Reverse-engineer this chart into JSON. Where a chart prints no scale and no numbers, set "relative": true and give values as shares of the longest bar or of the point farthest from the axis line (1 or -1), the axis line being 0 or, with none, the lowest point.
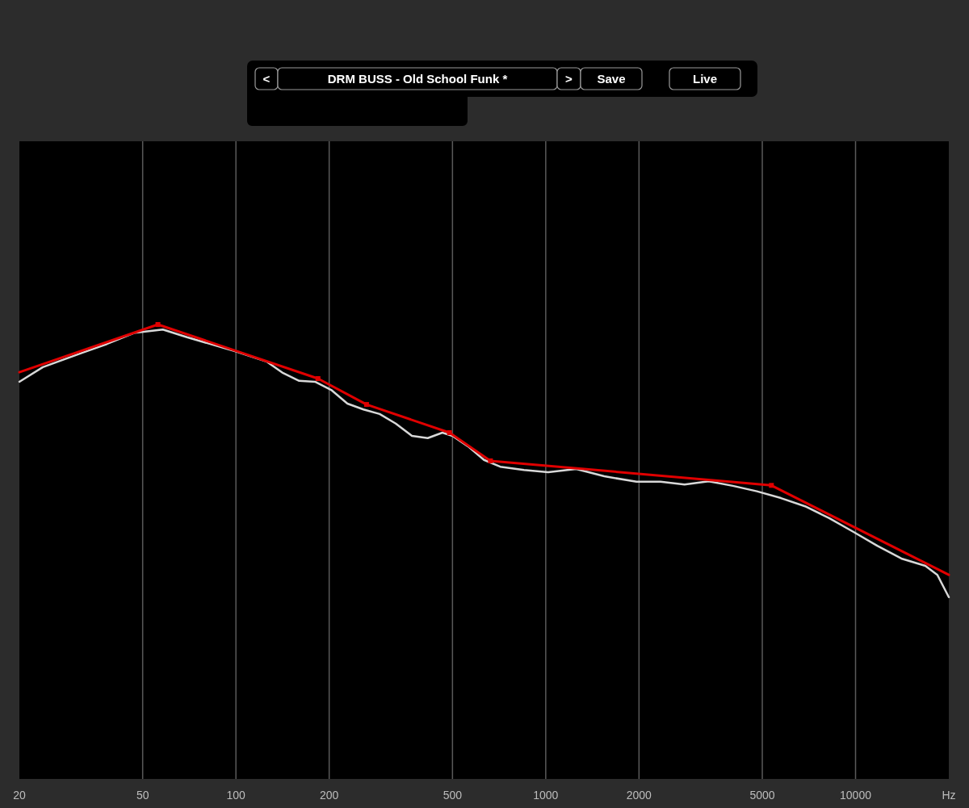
{
  "chart_data": {
    "type": "line",
    "relative": true,
    "log": "x",
    "grid": "x",
    "xlabel": "Hz",
    "xlim": [
      20,
      20000
    ],
    "xticks": [
      20,
      50,
      100,
      200,
      500,
      1000,
      2000,
      5000,
      10000
    ],
    "annotations": [
      "<",
      "DRM BUSS - Old School Funk *",
      ">",
      "Save",
      "Live"
    ],
    "series": [
      {
        "color": "#d8d8d8",
        "marker": "none",
        "x": [
          20,
          23.8,
          32,
          38.3,
          47.2,
          58.1,
          69.5,
          99.8,
          126,
          142,
          160,
          180,
          203,
          229,
          258,
          291,
          328,
          370,
          416,
          464,
          500,
          561,
          632,
          713,
          851,
          1018,
          1254,
          1545,
          1963,
          2346,
          2806,
          3357,
          4016,
          4802,
          5745,
          6871,
          8219,
          9826,
          11750,
          14060,
          16800,
          18370,
          20000
        ],
        "values": [
          0.874,
          0.906,
          0.938,
          0.957,
          0.982,
          0.989,
          0.972,
          0.941,
          0.918,
          0.893,
          0.876,
          0.874,
          0.856,
          0.826,
          0.813,
          0.803,
          0.782,
          0.755,
          0.75,
          0.762,
          0.755,
          0.732,
          0.702,
          0.687,
          0.68,
          0.675,
          0.682,
          0.666,
          0.654,
          0.654,
          0.648,
          0.655,
          0.645,
          0.633,
          0.618,
          0.6,
          0.574,
          0.544,
          0.513,
          0.485,
          0.469,
          0.449,
          0.4
        ]
      },
      {
        "color": "#e00000",
        "marker": "square",
        "x": [
          20,
          56,
          184,
          264,
          489,
          663,
          5350,
          20000
        ],
        "values": [
          0.895,
          1,
          0.881,
          0.824,
          0.762,
          0.7,
          0.646,
          0.449
        ]
      }
    ]
  }
}
